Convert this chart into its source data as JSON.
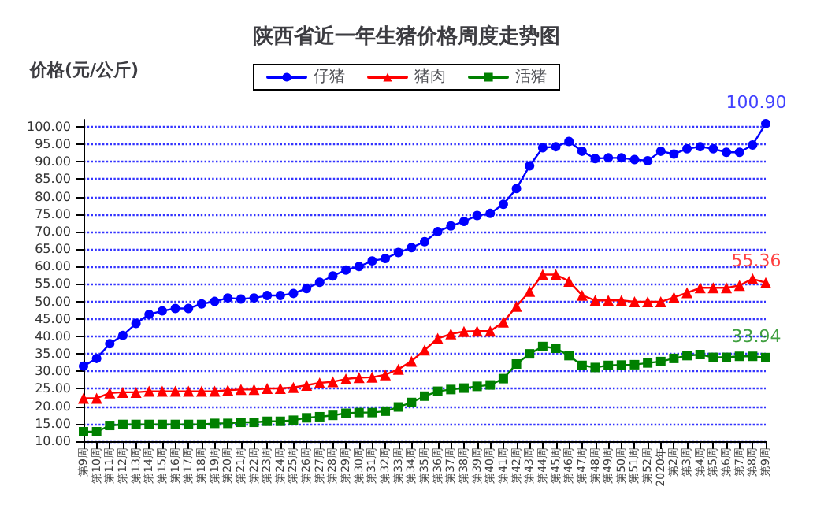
{
  "chart_data": {
    "type": "line",
    "title": "陕西省近一年生猪价格周度走势图",
    "ylabel": "价格(元/公斤)",
    "categories": [
      "第9周",
      "第10周",
      "第11周",
      "第12周",
      "第13周",
      "第14周",
      "第15周",
      "第16周",
      "第17周",
      "第18周",
      "第19周",
      "第20周",
      "第21周",
      "第22周",
      "第23周",
      "第24周",
      "第25周",
      "第26周",
      "第27周",
      "第28周",
      "第29周",
      "第30周",
      "第31周",
      "第32周",
      "第33周",
      "第34周",
      "第35周",
      "第36周",
      "第37周",
      "第38周",
      "第39周",
      "第40周",
      "第41周",
      "第42周",
      "第43周",
      "第44周",
      "第45周",
      "第46周",
      "第47周",
      "第48周",
      "第49周",
      "第50周",
      "第51周",
      "第52周",
      "2020年",
      "第2周",
      "第3周",
      "第4周",
      "第5周",
      "第6周",
      "第7周",
      "第8周",
      "第9周"
    ],
    "series": [
      {
        "name": "仔猪",
        "color": "#0000ff",
        "marker": "circle",
        "values": [
          31.5,
          33.7,
          37.9,
          40.3,
          43.7,
          46.3,
          47.3,
          48,
          48,
          49.3,
          50,
          51,
          50.7,
          51,
          51.7,
          51.7,
          52.3,
          53.7,
          55.5,
          57.3,
          59,
          60,
          61.6,
          62.3,
          64,
          65.4,
          67.1,
          70,
          71.6,
          72.9,
          74.6,
          75.2,
          77.8,
          82.3,
          88.8,
          94,
          94.3,
          95.8,
          93,
          90.9,
          91.1,
          91.1,
          90.6,
          90.3,
          93,
          92.2,
          93.7,
          94.3,
          93.7,
          92.7,
          92.7,
          94.8,
          100.9
        ],
        "value_labels": [
          null,
          null,
          null,
          null,
          null,
          null,
          null,
          null,
          null,
          null,
          null,
          null,
          null,
          null,
          null,
          null,
          null,
          null,
          null,
          null,
          null,
          null,
          null,
          null,
          null,
          null,
          null,
          null,
          null,
          null,
          null,
          null,
          null,
          null,
          null,
          null,
          null,
          null,
          null,
          null,
          null,
          null,
          null,
          null,
          null,
          null,
          null,
          null,
          null,
          null,
          null,
          null,
          "100.90"
        ]
      },
      {
        "name": "猪肉",
        "color": "#ff0000",
        "marker": "triangle",
        "values": [
          22.3,
          22.3,
          23.8,
          24,
          24,
          24.3,
          24.3,
          24.3,
          24.3,
          24.3,
          24.3,
          24.6,
          24.8,
          24.8,
          25.1,
          25.1,
          25.4,
          26,
          26.7,
          27,
          27.8,
          28.2,
          28.3,
          29,
          30.6,
          32.9,
          36.1,
          39.4,
          40.7,
          41.4,
          41.5,
          41.5,
          44.1,
          48.6,
          52.9,
          57.7,
          57.7,
          55.8,
          51.8,
          50.3,
          50.3,
          50.3,
          49.9,
          49.9,
          49.9,
          51.2,
          52.5,
          53.9,
          53.9,
          53.9,
          54.6,
          56.5,
          55.36
        ],
        "value_labels": [
          null,
          null,
          null,
          null,
          null,
          null,
          null,
          null,
          null,
          null,
          null,
          null,
          null,
          null,
          null,
          null,
          null,
          null,
          null,
          null,
          null,
          null,
          null,
          null,
          null,
          null,
          null,
          null,
          null,
          null,
          null,
          null,
          null,
          null,
          null,
          null,
          null,
          null,
          null,
          null,
          null,
          null,
          null,
          null,
          null,
          null,
          null,
          null,
          null,
          null,
          null,
          null,
          "55.36"
        ]
      },
      {
        "name": "活猪",
        "color": "#008000",
        "marker": "square",
        "values": [
          12.7,
          12.7,
          14.5,
          14.8,
          14.8,
          14.8,
          14.8,
          14.8,
          14.8,
          14.8,
          15.1,
          15.1,
          15.4,
          15.4,
          15.7,
          15.7,
          16,
          16.7,
          17,
          17.4,
          18,
          18.2,
          18.2,
          18.6,
          19.8,
          21.1,
          22.9,
          24.3,
          24.8,
          25.2,
          25.7,
          26.1,
          27.9,
          32.1,
          35,
          37.1,
          36.6,
          34.5,
          31.7,
          31.1,
          31.7,
          31.8,
          31.9,
          32.4,
          32.8,
          33.7,
          34.5,
          34.8,
          34,
          34,
          34.3,
          34.3,
          33.94
        ],
        "value_labels": [
          null,
          null,
          null,
          null,
          null,
          null,
          null,
          null,
          null,
          null,
          null,
          null,
          null,
          null,
          null,
          null,
          null,
          null,
          null,
          null,
          null,
          null,
          null,
          null,
          null,
          null,
          null,
          null,
          null,
          null,
          null,
          null,
          null,
          null,
          null,
          null,
          null,
          null,
          null,
          null,
          null,
          null,
          null,
          null,
          null,
          null,
          null,
          null,
          null,
          null,
          null,
          null,
          "33.94"
        ]
      }
    ],
    "ylim": [
      10,
      102
    ],
    "yticks": [
      {
        "value": 10,
        "label": "10.00"
      },
      {
        "value": 15,
        "label": "15.00"
      },
      {
        "value": 20,
        "label": "20.00"
      },
      {
        "value": 25,
        "label": "25.00"
      },
      {
        "value": 30,
        "label": "30.00"
      },
      {
        "value": 35,
        "label": "35.00"
      },
      {
        "value": 40,
        "label": "40.00"
      },
      {
        "value": 45,
        "label": "45.00"
      },
      {
        "value": 50,
        "label": "50.00"
      },
      {
        "value": 55,
        "label": "55.00"
      },
      {
        "value": 60,
        "label": "60.00"
      },
      {
        "value": 65,
        "label": "65.00"
      },
      {
        "value": 70,
        "label": "70.00"
      },
      {
        "value": 75,
        "label": "75.00"
      },
      {
        "value": 80,
        "label": "80.00"
      },
      {
        "value": 85,
        "label": "85.00"
      },
      {
        "value": 90,
        "label": "90.00"
      },
      {
        "value": 95,
        "label": "95.00"
      },
      {
        "value": 100,
        "label": "100.00"
      }
    ],
    "grid": "y",
    "legend": "top",
    "line_style": "solid"
  }
}
